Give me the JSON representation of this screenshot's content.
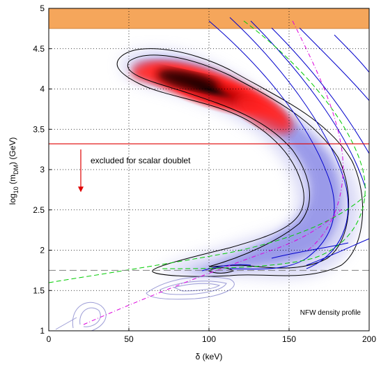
{
  "chart_data": {
    "type": "contour",
    "xlabel": "δ (keV)",
    "ylabel_prefix": "log",
    "ylabel_sub1": "10",
    "ylabel_mid": " (m",
    "ylabel_sub2": "DM",
    "ylabel_suffix": ") (GeV)",
    "xlim": [
      0,
      200
    ],
    "ylim": [
      1,
      5
    ],
    "x_ticks": [
      0,
      50,
      100,
      150,
      200
    ],
    "y_ticks": [
      1,
      1.5,
      2,
      2.5,
      3,
      3.5,
      4,
      4.5,
      5
    ],
    "grid": "dotted",
    "excluded_band": {
      "y_from": 4.75,
      "y_to": 5.0,
      "color": "#f5a65b"
    },
    "scalar_doublet_line": {
      "y": 3.32,
      "color": "#e00000"
    },
    "dashed_line": {
      "y": 1.75,
      "color": "#808080"
    },
    "arrow": {
      "x": 20,
      "y_from": 3.25,
      "y_to": 2.72,
      "color": "#e00000"
    },
    "annotations": {
      "excluded_text": "excluded for scalar doublet",
      "profile_text": "NFW density profile"
    },
    "colors": {
      "contour": "#000000",
      "blue": "#0000cc",
      "green": "#00cc00",
      "magenta": "#dd00dd",
      "light": "#9c9cd6"
    }
  }
}
